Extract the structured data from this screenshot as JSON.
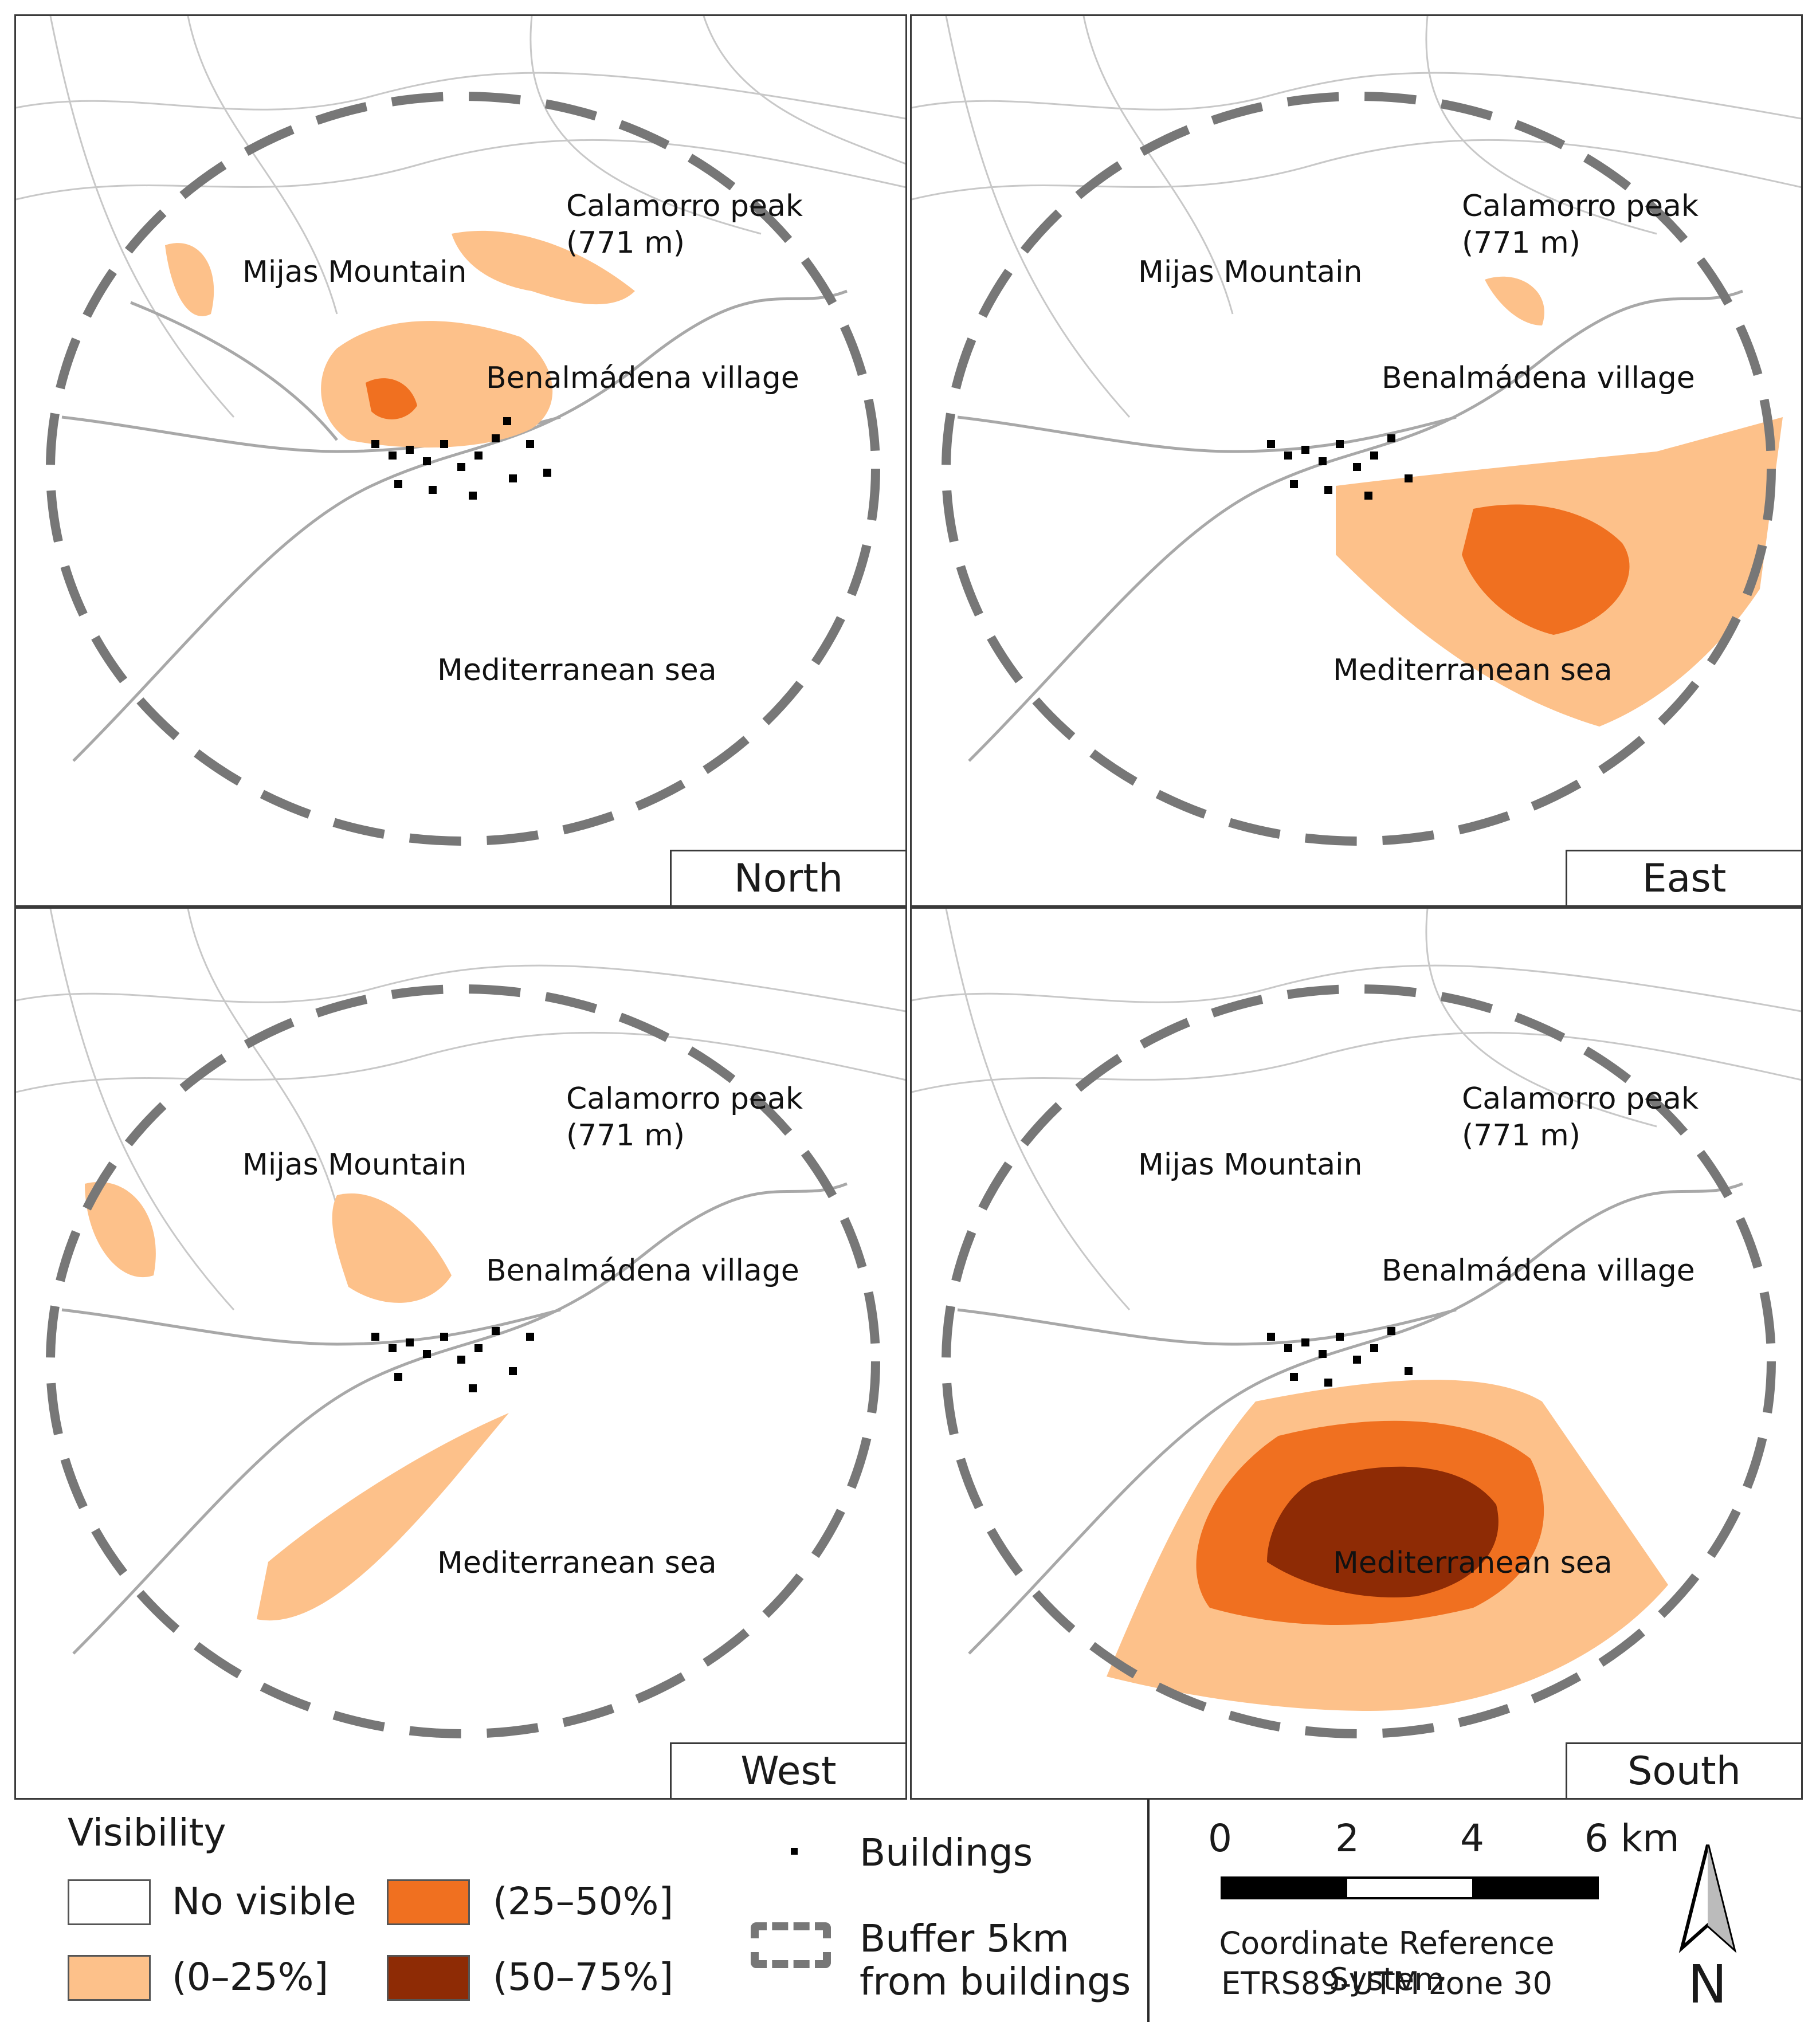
{
  "panels": [
    {
      "direction": "North"
    },
    {
      "direction": "East"
    },
    {
      "direction": "West"
    },
    {
      "direction": "South"
    }
  ],
  "places": {
    "mijas": "Mijas Mountain",
    "calamorro": "Calamorro peak (771 m)",
    "benalmadena": "Benalmádena village",
    "sea": "Mediterranean sea"
  },
  "legend": {
    "title": "Visibility",
    "classes": [
      {
        "label": "No visible",
        "color": "#ffffff"
      },
      {
        "label": "(0–25%]",
        "color": "#fdc18a"
      },
      {
        "label": "(25–50%]",
        "color": "#f07020"
      },
      {
        "label": "(50–75%]",
        "color": "#8e2b05"
      }
    ],
    "buildings": "Buildings",
    "buffer_line1": "Buffer 5km",
    "buffer_line2": "from buildings"
  },
  "scale": {
    "ticks": [
      "0",
      "2",
      "4",
      "6 km"
    ]
  },
  "crs_line1": "Coordinate Reference System",
  "crs_line2": "ETRS89-UTM zone 30",
  "north_arrow": "N",
  "colors": {
    "low": "#fdc18a",
    "mid": "#f07020",
    "high": "#8e2b05",
    "buffer": "#777777",
    "roads": "#b0b0b0"
  }
}
